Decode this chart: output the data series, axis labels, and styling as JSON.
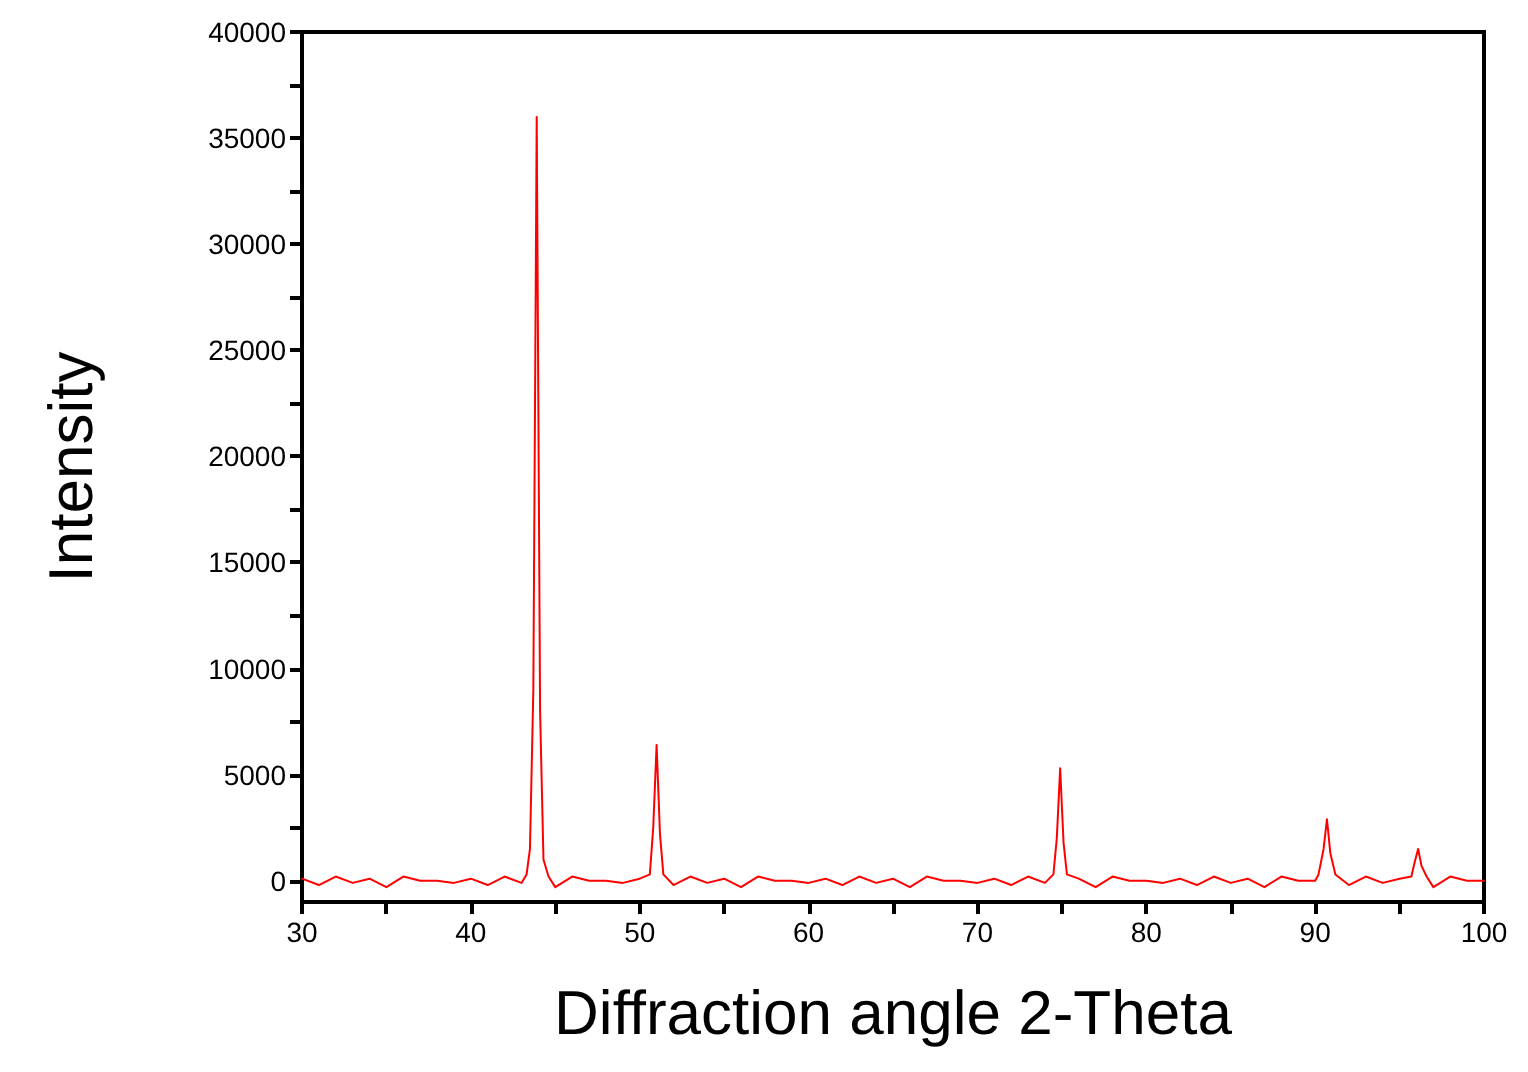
{
  "chart_data": {
    "type": "line",
    "xlabel": "Diffraction angle 2-Theta",
    "ylabel": "Intensity",
    "xlim": [
      30,
      100
    ],
    "ylim": [
      -1000,
      40000
    ],
    "xticks": [
      30,
      {
        "value": 35,
        "label": null
      },
      40,
      {
        "value": 45,
        "label": null
      },
      50,
      {
        "value": 55,
        "label": null
      },
      60,
      {
        "value": 65,
        "label": null
      },
      70,
      {
        "value": 75,
        "label": null
      },
      80,
      {
        "value": 85,
        "label": null
      },
      90,
      {
        "value": 95,
        "label": null
      },
      100
    ],
    "yticks": [
      0,
      {
        "value": 2500,
        "label": null
      },
      5000,
      {
        "value": 7500,
        "label": null
      },
      10000,
      {
        "value": 12500,
        "label": null
      },
      15000,
      {
        "value": 17500,
        "label": null
      },
      20000,
      {
        "value": 22500,
        "label": null
      },
      25000,
      {
        "value": 27500,
        "label": null
      },
      30000,
      {
        "value": 32500,
        "label": null
      },
      35000,
      {
        "value": 37500,
        "label": null
      },
      40000
    ],
    "grid": false,
    "marker": "none",
    "line_style": "solid",
    "series": [
      {
        "color": "#ff0000",
        "x": [
          30,
          31,
          32,
          33,
          34,
          35,
          36,
          37,
          38,
          39,
          40,
          41,
          42,
          43,
          43.3,
          43.5,
          43.7,
          43.9,
          44.1,
          44.3,
          44.6,
          45,
          46,
          47,
          48,
          49,
          50,
          50.6,
          50.8,
          51.0,
          51.2,
          51.4,
          52,
          53,
          54,
          55,
          56,
          57,
          58,
          59,
          60,
          61,
          62,
          63,
          64,
          65,
          66,
          67,
          68,
          69,
          70,
          71,
          72,
          73,
          74,
          74.5,
          74.7,
          74.9,
          75.1,
          75.3,
          76,
          77,
          78,
          79,
          80,
          81,
          82,
          83,
          84,
          85,
          86,
          87,
          88,
          89,
          90,
          90.2,
          90.5,
          90.7,
          90.9,
          91.2,
          92,
          93,
          94,
          95,
          95.7,
          95.9,
          96.1,
          96.3,
          96.6,
          97,
          98,
          99,
          100
        ],
        "values": [
          100,
          -200,
          200,
          -100,
          100,
          -300,
          200,
          0,
          0,
          -100,
          100,
          -200,
          200,
          -100,
          300,
          1500,
          9000,
          36000,
          8000,
          1000,
          200,
          -300,
          200,
          0,
          0,
          -100,
          100,
          300,
          2500,
          6400,
          2200,
          300,
          -200,
          200,
          -100,
          100,
          -300,
          200,
          0,
          0,
          -100,
          100,
          -200,
          200,
          -100,
          100,
          -300,
          200,
          0,
          0,
          -100,
          100,
          -200,
          200,
          -100,
          300,
          2000,
          5300,
          1800,
          300,
          100,
          -300,
          200,
          0,
          0,
          -100,
          100,
          -200,
          200,
          -100,
          100,
          -300,
          200,
          0,
          0,
          300,
          1500,
          2900,
          1300,
          300,
          -200,
          200,
          -100,
          100,
          200,
          900,
          1500,
          700,
          200,
          -300,
          200,
          0,
          0
        ]
      }
    ]
  }
}
